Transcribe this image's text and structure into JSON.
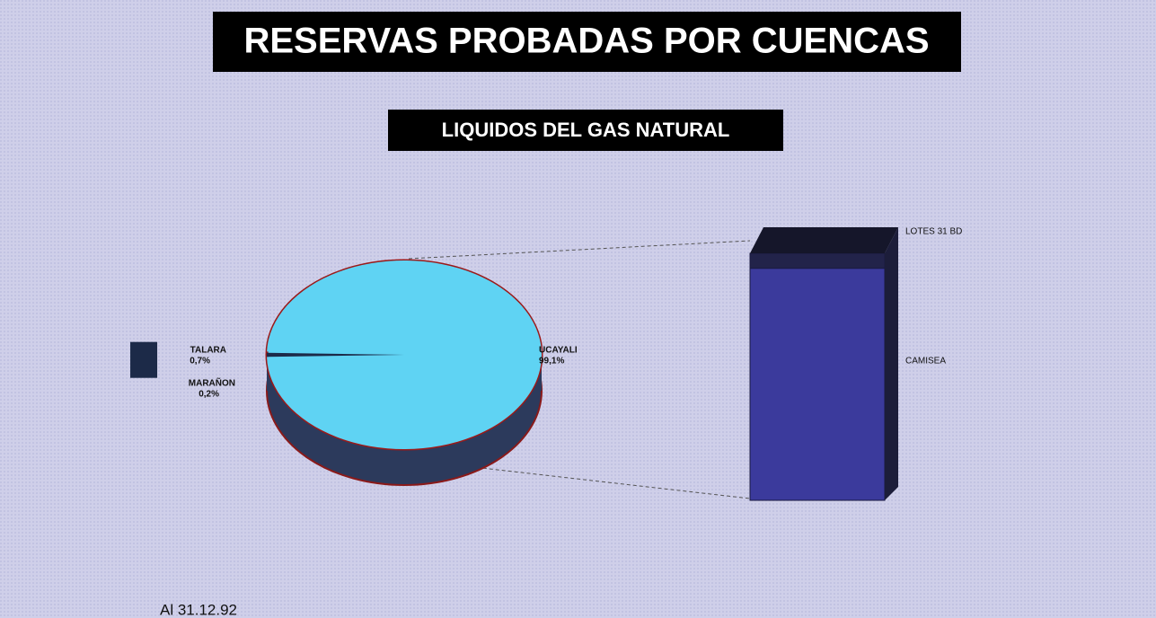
{
  "chart_data": {
    "type": "pie",
    "title": "RESERVAS PROBADAS POR CUENCAS",
    "subtitle": "LIQUIDOS DEL GAS NATURAL",
    "categories": [
      "UCAYALI",
      "TALARA",
      "MARAÑON"
    ],
    "values": [
      99.1,
      0.7,
      0.2
    ],
    "value_labels": [
      "99,1%",
      "0,7%",
      "0,2%"
    ],
    "colors": [
      "#5fd3f3",
      "#1c2a48",
      "#1c2a48"
    ],
    "bar": {
      "categories": [
        "CAMISEA",
        "LOTES 31 BD"
      ],
      "values": [
        93.1,
        6.0
      ],
      "color": "#3b3a9c"
    },
    "note": "Al 31.12.92"
  }
}
